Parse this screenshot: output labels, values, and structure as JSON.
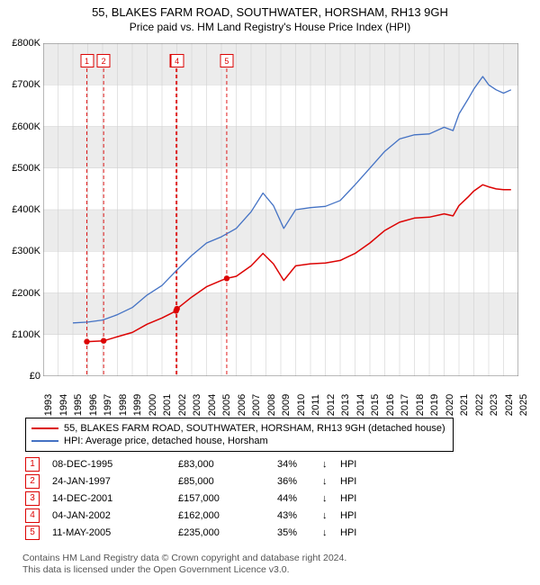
{
  "title": "55, BLAKES FARM ROAD, SOUTHWATER, HORSHAM, RH13 9GH",
  "subtitle": "Price paid vs. HM Land Registry's House Price Index (HPI)",
  "chart": {
    "type": "line",
    "background_color": "#ffffff",
    "grid_color": "#d0d0d0",
    "grid_light": "#ececec",
    "x_min": 1993,
    "x_max": 2025,
    "y_min": 0,
    "y_max": 800000,
    "y_ticks": [
      0,
      100000,
      200000,
      300000,
      400000,
      500000,
      600000,
      700000,
      800000
    ],
    "y_tick_labels": [
      "£0",
      "£100K",
      "£200K",
      "£300K",
      "£400K",
      "£500K",
      "£600K",
      "£700K",
      "£800K"
    ],
    "x_tick_step": 1,
    "marker_color": "#dc0303",
    "marker_radius": 3.2,
    "vline_color": "#dc0303",
    "vline_dash": "4 3",
    "marker_top_y": 28,
    "series": [
      {
        "name": "55, BLAKES FARM ROAD, SOUTHWATER, HORSHAM, RH13 9GH (detached house)",
        "color": "#dc0303",
        "line_width": 1.5,
        "points": [
          [
            1995.94,
            83000
          ],
          [
            1997.07,
            85000
          ],
          [
            1998.0,
            95000
          ],
          [
            1999.0,
            105000
          ],
          [
            2000.0,
            125000
          ],
          [
            2001.0,
            140000
          ],
          [
            2001.95,
            157000
          ],
          [
            2002.01,
            162000
          ],
          [
            2003.0,
            190000
          ],
          [
            2004.0,
            215000
          ],
          [
            2005.0,
            230000
          ],
          [
            2005.36,
            235000
          ],
          [
            2006.0,
            240000
          ],
          [
            2007.0,
            265000
          ],
          [
            2007.8,
            295000
          ],
          [
            2008.5,
            270000
          ],
          [
            2009.2,
            230000
          ],
          [
            2010.0,
            265000
          ],
          [
            2011.0,
            270000
          ],
          [
            2012.0,
            272000
          ],
          [
            2013.0,
            278000
          ],
          [
            2014.0,
            295000
          ],
          [
            2015.0,
            320000
          ],
          [
            2016.0,
            350000
          ],
          [
            2017.0,
            370000
          ],
          [
            2018.0,
            380000
          ],
          [
            2019.0,
            382000
          ],
          [
            2020.0,
            390000
          ],
          [
            2020.6,
            385000
          ],
          [
            2021.0,
            410000
          ],
          [
            2021.6,
            430000
          ],
          [
            2022.0,
            445000
          ],
          [
            2022.6,
            460000
          ],
          [
            2023.0,
            455000
          ],
          [
            2023.5,
            450000
          ],
          [
            2024.0,
            448000
          ],
          [
            2024.5,
            448000
          ]
        ]
      },
      {
        "name": "HPI: Average price, detached house, Horsham",
        "color": "#4472c4",
        "line_width": 1.3,
        "points": [
          [
            1995.0,
            128000
          ],
          [
            1996.0,
            130000
          ],
          [
            1997.0,
            135000
          ],
          [
            1998.0,
            148000
          ],
          [
            1999.0,
            165000
          ],
          [
            2000.0,
            195000
          ],
          [
            2001.0,
            218000
          ],
          [
            2002.0,
            255000
          ],
          [
            2003.0,
            290000
          ],
          [
            2004.0,
            320000
          ],
          [
            2005.0,
            335000
          ],
          [
            2006.0,
            355000
          ],
          [
            2007.0,
            395000
          ],
          [
            2007.8,
            440000
          ],
          [
            2008.5,
            410000
          ],
          [
            2009.2,
            355000
          ],
          [
            2010.0,
            400000
          ],
          [
            2011.0,
            405000
          ],
          [
            2012.0,
            408000
          ],
          [
            2013.0,
            422000
          ],
          [
            2014.0,
            460000
          ],
          [
            2015.0,
            500000
          ],
          [
            2016.0,
            540000
          ],
          [
            2017.0,
            570000
          ],
          [
            2018.0,
            580000
          ],
          [
            2019.0,
            582000
          ],
          [
            2020.0,
            598000
          ],
          [
            2020.6,
            590000
          ],
          [
            2021.0,
            630000
          ],
          [
            2021.6,
            665000
          ],
          [
            2022.0,
            690000
          ],
          [
            2022.6,
            720000
          ],
          [
            2023.0,
            700000
          ],
          [
            2023.5,
            688000
          ],
          [
            2024.0,
            680000
          ],
          [
            2024.5,
            688000
          ]
        ]
      }
    ],
    "events": [
      {
        "n": 1,
        "date": "08-DEC-1995",
        "year": 1995.94,
        "price_label": "£83,000",
        "price": 83000,
        "pct": "34%",
        "arrow": "↓",
        "rel": "HPI"
      },
      {
        "n": 2,
        "date": "24-JAN-1997",
        "year": 1997.07,
        "price_label": "£85,000",
        "price": 85000,
        "pct": "36%",
        "arrow": "↓",
        "rel": "HPI"
      },
      {
        "n": 3,
        "date": "14-DEC-2001",
        "year": 2001.95,
        "price_label": "£157,000",
        "price": 157000,
        "pct": "44%",
        "arrow": "↓",
        "rel": "HPI"
      },
      {
        "n": 4,
        "date": "04-JAN-2002",
        "year": 2002.01,
        "price_label": "£162,000",
        "price": 162000,
        "pct": "43%",
        "arrow": "↓",
        "rel": "HPI"
      },
      {
        "n": 5,
        "date": "11-MAY-2005",
        "year": 2005.36,
        "price_label": "£235,000",
        "price": 235000,
        "pct": "35%",
        "arrow": "↓",
        "rel": "HPI"
      }
    ]
  },
  "footer_line1": "Contains HM Land Registry data © Crown copyright and database right 2024.",
  "footer_line2": "This data is licensed under the Open Government Licence v3.0.",
  "font_sizes": {
    "title": 13,
    "subtitle": 12,
    "axis": 11,
    "legend": 11,
    "events": 11,
    "footer": 10.5
  }
}
